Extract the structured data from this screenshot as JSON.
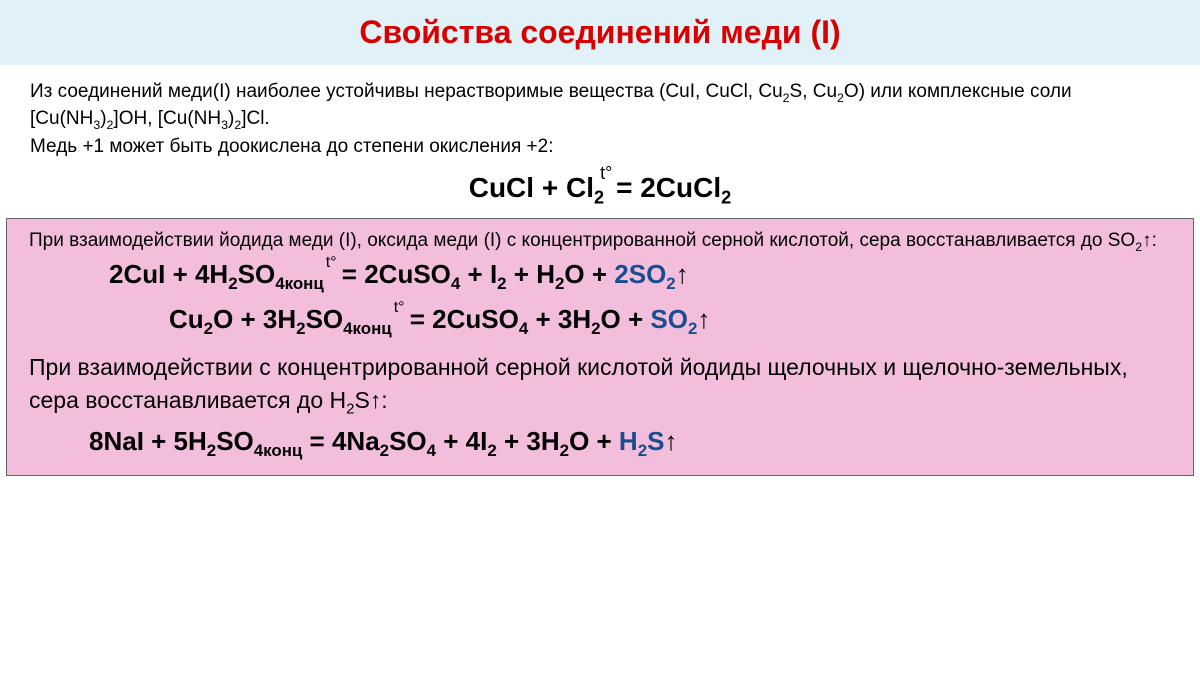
{
  "colors": {
    "title_bg": "#e0f2f7",
    "title_color": "#d80000",
    "pink_bg": "#f2bedc",
    "highlight_color": "#1a4d8f",
    "text_color": "#000000"
  },
  "title": "Свойства соединений меди (I)",
  "intro": {
    "line1_a": "Из соединений меди(I) наиболее устойчивы нерастворимые вещества (CuI,  CuCl, Cu",
    "line1_b": "S, Cu",
    "line1_c": "O) или комплексные соли  [Cu(NH",
    "line1_d": ")",
    "line1_e": "]OH, [Cu(NH",
    "line1_f": ")",
    "line1_g": "]Cl.",
    "line2": "Медь +1 может быть доокислена до степени окисления +2:"
  },
  "eq1": {
    "left": "CuCl + Cl",
    "eq": " = ",
    "right": "2CuCl",
    "temp": "t°"
  },
  "pink": {
    "intro_a": "При взаимодействии йодида меди (I), оксида меди (I)  с концентрированной серной кислотой, сера восстанавливается до SO",
    "intro_b": "↑:"
  },
  "eq2": {
    "l1": "2CuI + 4H",
    "l2": "SO",
    "konz": "4конц",
    "eq": " = ",
    "r1": "2CuSO",
    "r2": " + I",
    "r3": " + H",
    "r4": "O + ",
    "so2": "2SO",
    "up": "↑",
    "temp": "t°"
  },
  "eq3": {
    "l1": "Cu",
    "l2": "O + 3H",
    "l3": "SO",
    "konz": "4конц",
    "eq": " = ",
    "r1": "2CuSO",
    "r2": " + 3H",
    "r3": "O + ",
    "so2": "SO",
    "up": "↑",
    "temp": "t°"
  },
  "note": {
    "line1": "При взаимодействии с концентрированной серной кислотой йодиды щелочных и щелочно-земельных, сера восстанавливается до H",
    "line2": "S↑:"
  },
  "eq4": {
    "l1": "8NaI + 5H",
    "l2": "SO",
    "konz": "4конц",
    "eq": " = ",
    "r1": "4Na",
    "r2": "SO",
    "r3": " + 4I",
    "r4": " + 3H",
    "r5": "O + ",
    "h2s": "H",
    "h2s2": "S",
    "up": "↑"
  }
}
